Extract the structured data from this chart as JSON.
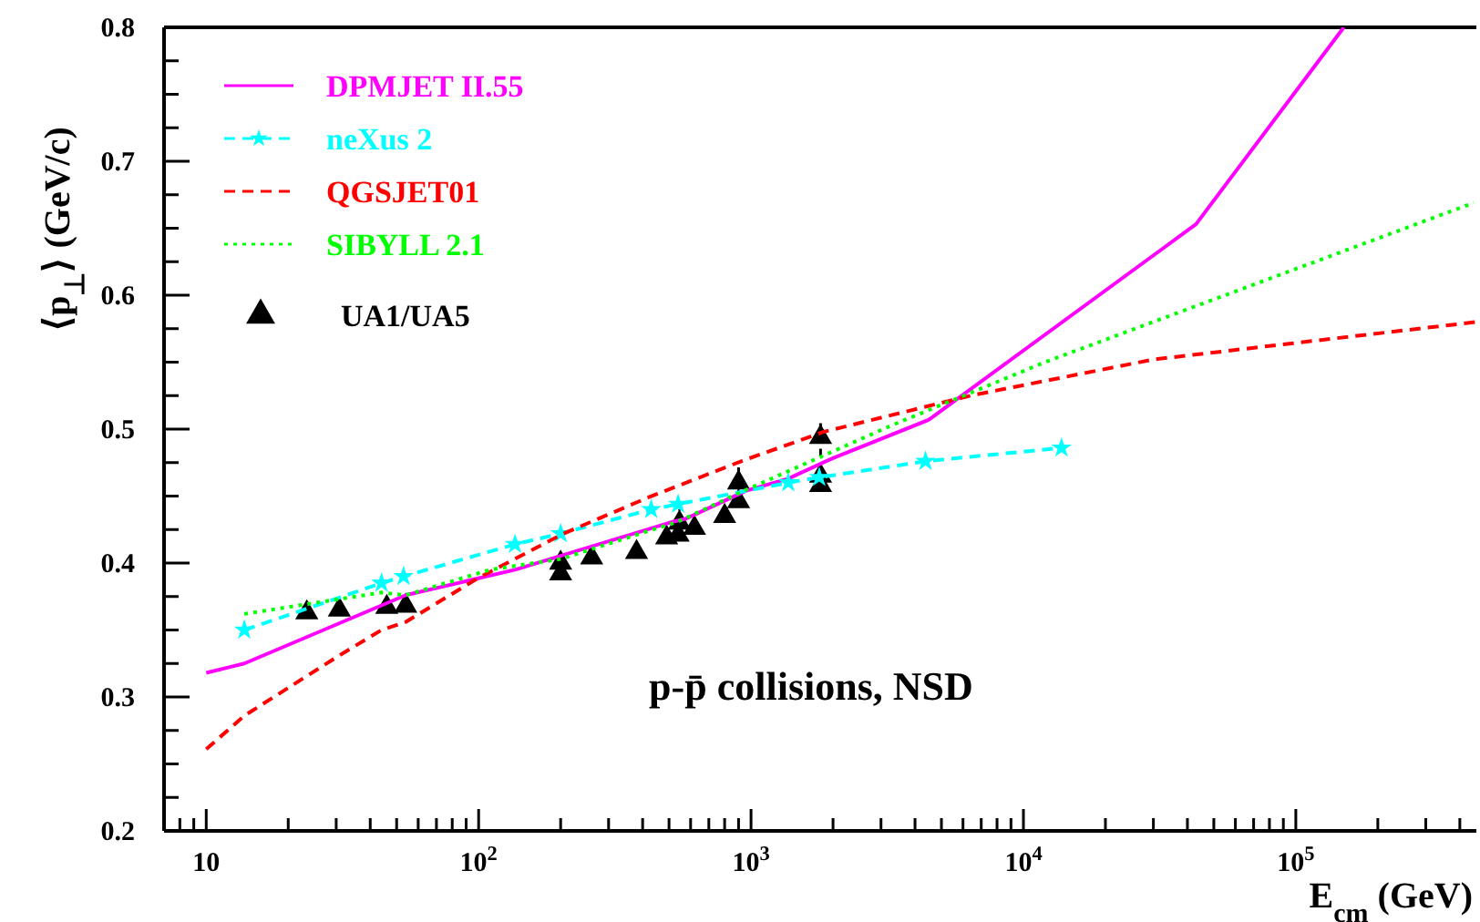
{
  "chart_data": {
    "type": "line",
    "xlabel": "E$_{cm}$ (GeV)",
    "ylabel": "⟨p$_{⊥}$⟩  (GeV/c)",
    "annotations": [
      "p-p̄ collisions, NSD"
    ],
    "log": "x",
    "xlim": [
      7,
      460000
    ],
    "ylim": [
      0.2,
      0.8
    ],
    "xticks": [
      {
        "value": 7,
        "label": null
      },
      {
        "value": 8,
        "label": null
      },
      {
        "value": 9,
        "label": null
      },
      10,
      {
        "value": 20,
        "label": null
      },
      {
        "value": 30,
        "label": null
      },
      {
        "value": 40,
        "label": null
      },
      {
        "value": 50,
        "label": null
      },
      {
        "value": 60,
        "label": null
      },
      {
        "value": 70,
        "label": null
      },
      {
        "value": 80,
        "label": null
      },
      {
        "value": 90,
        "label": null
      },
      {
        "value": 100,
        "label": "10$^{2}$"
      },
      {
        "value": 200,
        "label": null
      },
      {
        "value": 300,
        "label": null
      },
      {
        "value": 400,
        "label": null
      },
      {
        "value": 500,
        "label": null
      },
      {
        "value": 600,
        "label": null
      },
      {
        "value": 700,
        "label": null
      },
      {
        "value": 800,
        "label": null
      },
      {
        "value": 900,
        "label": null
      },
      {
        "value": 1000,
        "label": "10$^{3}$"
      },
      {
        "value": 2000,
        "label": null
      },
      {
        "value": 3000,
        "label": null
      },
      {
        "value": 4000,
        "label": null
      },
      {
        "value": 5000,
        "label": null
      },
      {
        "value": 6000,
        "label": null
      },
      {
        "value": 7000,
        "label": null
      },
      {
        "value": 8000,
        "label": null
      },
      {
        "value": 9000,
        "label": null
      },
      {
        "value": 10000,
        "label": "10$^{4}$"
      },
      {
        "value": 20000,
        "label": null
      },
      {
        "value": 30000,
        "label": null
      },
      {
        "value": 40000,
        "label": null
      },
      {
        "value": 50000,
        "label": null
      },
      {
        "value": 60000,
        "label": null
      },
      {
        "value": 70000,
        "label": null
      },
      {
        "value": 80000,
        "label": null
      },
      {
        "value": 90000,
        "label": null
      },
      {
        "value": 100000,
        "label": "10$^{5}$"
      },
      {
        "value": 200000,
        "label": null
      },
      {
        "value": 300000,
        "label": null
      },
      {
        "value": 400000,
        "label": null
      }
    ],
    "yticks": [
      0.2,
      {
        "value": 0.225,
        "label": null
      },
      {
        "value": 0.25,
        "label": null
      },
      {
        "value": 0.275,
        "label": null
      },
      0.3,
      {
        "value": 0.325,
        "label": null
      },
      {
        "value": 0.35,
        "label": null
      },
      {
        "value": 0.375,
        "label": null
      },
      0.4,
      {
        "value": 0.425,
        "label": null
      },
      {
        "value": 0.45,
        "label": null
      },
      {
        "value": 0.475,
        "label": null
      },
      0.5,
      {
        "value": 0.525,
        "label": null
      },
      {
        "value": 0.55,
        "label": null
      },
      {
        "value": 0.575,
        "label": null
      },
      0.6,
      {
        "value": 0.625,
        "label": null
      },
      {
        "value": 0.65,
        "label": null
      },
      {
        "value": 0.675,
        "label": null
      },
      0.7,
      {
        "value": 0.725,
        "label": null
      },
      {
        "value": 0.75,
        "label": null
      },
      {
        "value": 0.775,
        "label": null
      },
      0.8
    ],
    "legend": "top left",
    "series": [
      {
        "name": "DPMJET II.55",
        "color": "#ff00ff",
        "line_style": "solid",
        "marker": "none",
        "x": [
          10,
          13.8,
          54,
          136,
          520,
          575,
          960,
          1370,
          1980,
          4500,
          43000,
          150000
        ],
        "values": [
          0.318,
          0.325,
          0.376,
          0.395,
          0.431,
          0.433,
          0.454,
          0.463,
          0.478,
          0.507,
          0.653,
          0.8
        ]
      },
      {
        "name": "neXus 2",
        "color": "#00ffff",
        "line_style": "dashed",
        "marker": "star",
        "x": [
          13.8,
          44,
          53,
          136,
          200,
          430,
          540,
          1370,
          1780,
          4370,
          13800
        ],
        "values": [
          0.35,
          0.385,
          0.39,
          0.414,
          0.422,
          0.44,
          0.444,
          0.46,
          0.464,
          0.476,
          0.486
        ]
      },
      {
        "name": "QGSJET01",
        "color": "#ff0000",
        "line_style": "dashed",
        "marker": "none",
        "x": [
          10,
          13.8,
          30.8,
          44,
          54,
          100,
          205,
          420,
          920,
          1850,
          6400,
          30000,
          460000
        ],
        "values": [
          0.261,
          0.286,
          0.331,
          0.35,
          0.356,
          0.389,
          0.422,
          0.449,
          0.476,
          0.498,
          0.525,
          0.552,
          0.58
        ]
      },
      {
        "name": "SIBYLL 2.1",
        "color": "#00ff00",
        "line_style": "dotted",
        "marker": "none",
        "x": [
          13.8,
          44,
          54,
          110,
          200,
          540,
          920,
          3300,
          12000,
          450000
        ],
        "values": [
          0.362,
          0.378,
          0.376,
          0.395,
          0.403,
          0.431,
          0.453,
          0.503,
          0.55,
          0.669
        ]
      },
      {
        "name": "UA1/UA5",
        "type": "scatter",
        "color": "#000000",
        "marker": "triangle",
        "x": [
          23.4,
          30.8,
          46,
          54,
          200,
          200,
          260,
          380,
          490,
          540,
          546,
          620,
          800,
          900,
          900,
          1800,
          1800,
          1800
        ],
        "values": [
          0.363,
          0.365,
          0.367,
          0.368,
          0.4,
          0.392,
          0.404,
          0.408,
          0.419,
          0.421,
          0.43,
          0.426,
          0.435,
          0.446,
          0.46,
          0.494,
          0.465,
          0.458
        ],
        "errors": [
          null,
          null,
          null,
          null,
          0.008,
          null,
          null,
          null,
          null,
          null,
          0.01,
          null,
          null,
          null,
          0.013,
          0.014,
          0.01,
          null
        ]
      }
    ]
  }
}
